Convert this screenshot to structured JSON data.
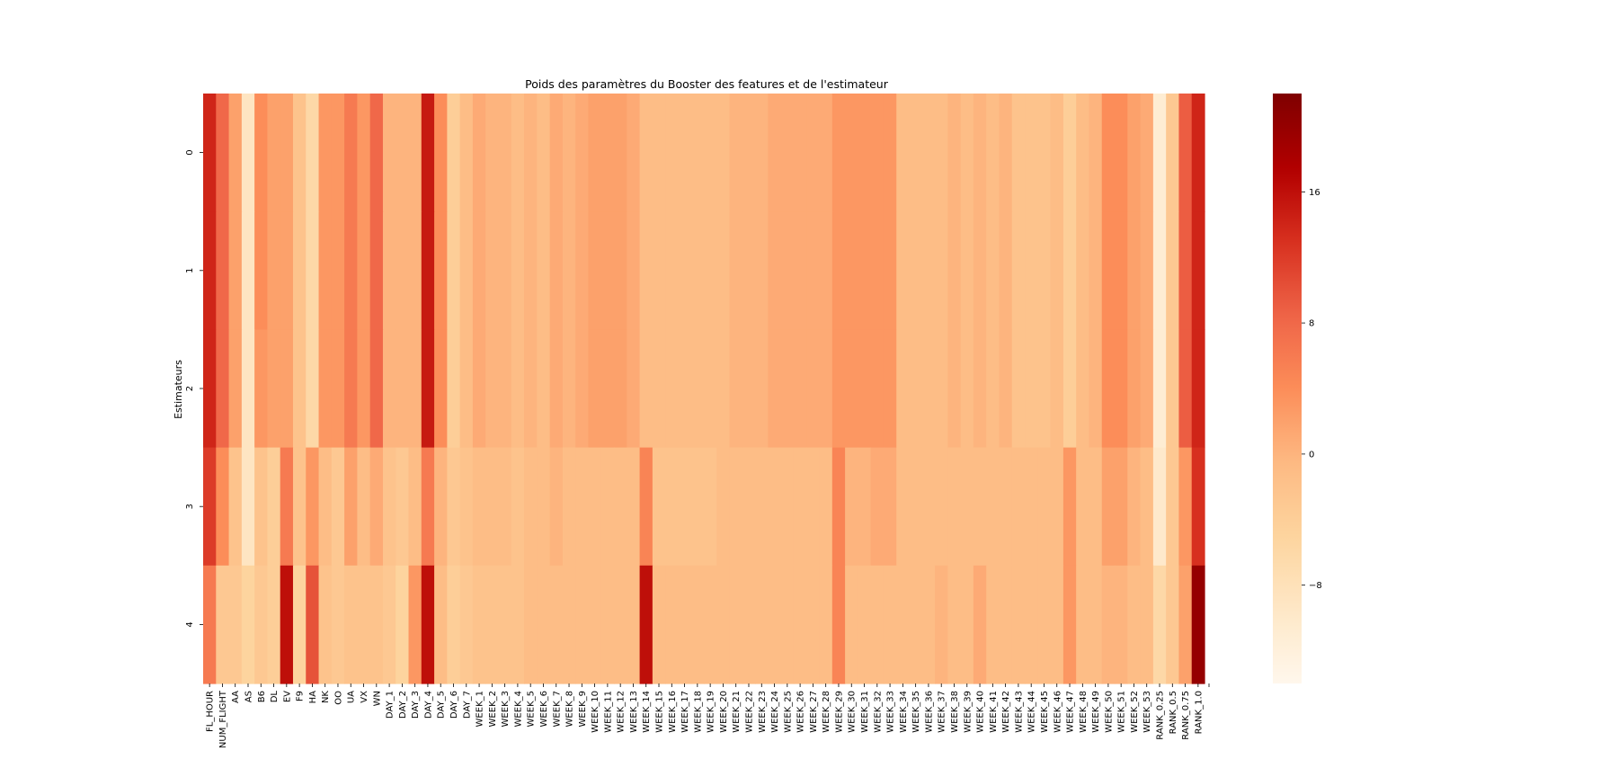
{
  "chart_data": {
    "type": "heatmap",
    "title": "Poids des paramètres du Booster des features et de l'estimateur",
    "xlabel": "",
    "ylabel": "Estimateurs",
    "x_categories": [
      "FL_HOUR",
      "NUM_FLIGHT",
      "AA",
      "AS",
      "B6",
      "DL",
      "EV",
      "F9",
      "HA",
      "NK",
      "OO",
      "UA",
      "VX",
      "WN",
      "DAY_1",
      "DAY_2",
      "DAY_3",
      "DAY_4",
      "DAY_5",
      "DAY_6",
      "DAY_7",
      "WEEK_1",
      "WEEK_2",
      "WEEK_3",
      "WEEK_4",
      "WEEK_5",
      "WEEK_6",
      "WEEK_7",
      "WEEK_8",
      "WEEK_9",
      "WEEK_10",
      "WEEK_11",
      "WEEK_12",
      "WEEK_13",
      "WEEK_14",
      "WEEK_15",
      "WEEK_16",
      "WEEK_17",
      "WEEK_18",
      "WEEK_19",
      "WEEK_20",
      "WEEK_21",
      "WEEK_22",
      "WEEK_23",
      "WEEK_24",
      "WEEK_25",
      "WEEK_26",
      "WEEK_27",
      "WEEK_28",
      "WEEK_29",
      "WEEK_30",
      "WEEK_31",
      "WEEK_32",
      "WEEK_33",
      "WEEK_34",
      "WEEK_35",
      "WEEK_36",
      "WEEK_37",
      "WEEK_38",
      "WEEK_39",
      "WEEK_40",
      "WEEK_41",
      "WEEK_42",
      "WEEK_43",
      "WEEK_44",
      "WEEK_45",
      "WEEK_46",
      "WEEK_47",
      "WEEK_48",
      "WEEK_49",
      "WEEK_50",
      "WEEK_51",
      "WEEK_52",
      "WEEK_53",
      "RANK_0.25",
      "RANK_0.5",
      "RANK_0.75",
      "RANK_1.0"
    ],
    "x_tick_labels": [
      "FL_HOUR",
      "NUM_FLIGHT",
      "AA",
      "AS",
      "B6",
      "DL",
      "EV",
      "F9",
      "HA",
      "NK",
      "OO",
      "UA",
      "VX",
      "WN",
      "DAY_1",
      "DAY_2",
      "DAY_3",
      "DAY_4",
      "DAY_5",
      "DAY_6",
      "DAY_7",
      "WEEK_1",
      "WEEK_2",
      "WEEK_3",
      "WEEK_4",
      "WEEK_5",
      "WEEK_6",
      "WEEK_7",
      "WEEK_8",
      "WEEK_9",
      "WEEK_10",
      "WEEK_11",
      "WEEK_12",
      "WEEK_13",
      "WEEK_14",
      "WEEK_15",
      "WEEK_16",
      "WEEK_17",
      "WEEK_18",
      "WEEK_19",
      "WEEK_20",
      "WEEK_21",
      "WEEK_22",
      "WEEK_23",
      "WEEK_24",
      "WEEK_25",
      "WEEK_26",
      "WEEK_27",
      "WEEK_28",
      "WEEK_29",
      "WEEK_30",
      "WEEK_31",
      "WEEK_32",
      "WEEK_33",
      "WEEK_34",
      "WEEK_35",
      "WEEK_36",
      "WEEK_37",
      "WEEK_38",
      "WEEK_39",
      "WEEK_40",
      "WEEK_41",
      "WEEK_42",
      "WEEK_43",
      "WEEK_44",
      "WEEK_45",
      "WEEK_46",
      "WEEK_47",
      "WEEK_48",
      "WEEK_49",
      "WEEK_50",
      "WEEK_51",
      "WEEK_52",
      "WEEK_53",
      "RANK_0.25",
      "RANK_0.5",
      "RANK_0.75",
      "RANK_1.0"
    ],
    "y_categories": [
      "0",
      "1",
      "2",
      "3",
      "4"
    ],
    "values": [
      [
        14,
        8,
        2,
        -9,
        4,
        2,
        2,
        -2,
        -6,
        3,
        3,
        6,
        3,
        8,
        0,
        0,
        0,
        15,
        4,
        -4,
        -1,
        1,
        0,
        0,
        -1,
        0,
        -1,
        1,
        0,
        1,
        2,
        2,
        2,
        1,
        -1,
        -1,
        -1,
        -1,
        -1,
        -1,
        -1,
        0,
        0,
        0,
        1,
        1,
        1,
        1,
        1,
        3,
        3,
        3,
        3,
        3,
        -1,
        -1,
        -1,
        -1,
        0,
        -1,
        0,
        -1,
        0,
        -2,
        -2,
        -2,
        -1,
        -4,
        -1,
        0,
        4,
        4,
        2,
        1,
        -11,
        -3,
        9,
        14
      ],
      [
        14,
        8,
        2,
        -9,
        4,
        2,
        2,
        -2,
        -6,
        3,
        3,
        6,
        3,
        8,
        0,
        0,
        0,
        15,
        4,
        -4,
        -1,
        1,
        0,
        0,
        -1,
        0,
        -1,
        1,
        0,
        1,
        2,
        2,
        2,
        1,
        -1,
        -1,
        -1,
        -1,
        -1,
        -1,
        -1,
        0,
        0,
        0,
        1,
        1,
        1,
        1,
        1,
        3,
        3,
        3,
        3,
        3,
        -1,
        -1,
        -1,
        -1,
        0,
        -1,
        0,
        -1,
        0,
        -2,
        -2,
        -2,
        -1,
        -4,
        -1,
        0,
        4,
        4,
        2,
        1,
        -11,
        -3,
        9,
        14
      ],
      [
        14,
        8,
        2,
        -9,
        3,
        2,
        2,
        -2,
        -6,
        3,
        3,
        6,
        3,
        8,
        0,
        0,
        0,
        15,
        4,
        -4,
        -1,
        1,
        0,
        0,
        -1,
        0,
        -1,
        1,
        0,
        1,
        2,
        2,
        2,
        1,
        -1,
        -1,
        -1,
        -1,
        -1,
        -1,
        -1,
        0,
        0,
        0,
        1,
        1,
        1,
        1,
        1,
        3,
        3,
        3,
        3,
        3,
        -1,
        -1,
        -1,
        -1,
        0,
        -1,
        0,
        -1,
        0,
        -2,
        -2,
        -2,
        -1,
        -4,
        -1,
        0,
        4,
        4,
        2,
        1,
        -11,
        -3,
        9,
        14
      ],
      [
        12,
        4,
        -2,
        -9,
        -2,
        -4,
        6,
        -2,
        3,
        -1,
        -3,
        2,
        -1,
        1,
        -2,
        -3,
        -1,
        6,
        0,
        -3,
        -2,
        -1,
        -1,
        -1,
        -2,
        -1,
        -1,
        0,
        -1,
        -1,
        -1,
        -1,
        -1,
        -1,
        5,
        -2,
        -2,
        -2,
        -2,
        -2,
        -1,
        -1,
        -1,
        -1,
        -1,
        -1,
        -1,
        -1,
        -1,
        5,
        0,
        0,
        1,
        1,
        -1,
        -1,
        -1,
        -1,
        -1,
        -1,
        -1,
        -1,
        -1,
        -1,
        -1,
        -1,
        -1,
        3,
        -1,
        -1,
        2,
        2,
        0,
        -1,
        -10,
        -3,
        3,
        13
      ],
      [
        6,
        -3,
        -3,
        -5,
        -3,
        -4,
        16,
        -5,
        10,
        -2,
        -3,
        -2,
        -2,
        -2,
        -3,
        -5,
        3,
        16,
        -1,
        -4,
        -3,
        -2,
        -2,
        -2,
        -2,
        -1,
        -1,
        -1,
        -1,
        -1,
        -1,
        -1,
        -1,
        -1,
        16,
        -1,
        -1,
        -1,
        -1,
        -1,
        -1,
        -1,
        -1,
        -1,
        -1,
        -1,
        -1,
        -1,
        -1,
        5,
        -1,
        -1,
        -1,
        -1,
        -1,
        -1,
        -1,
        0,
        -1,
        -1,
        1,
        -1,
        -1,
        -1,
        -1,
        -1,
        -1,
        3,
        -1,
        -1,
        0,
        0,
        -1,
        -1,
        -6,
        -3,
        2,
        20
      ]
    ],
    "colormap": "OrRd",
    "vmin": -14,
    "vmax": 22,
    "colorbar_ticks": [
      "16",
      "8",
      "0",
      "−8"
    ],
    "colorbar_tick_values": [
      16,
      8,
      0,
      -8
    ]
  }
}
